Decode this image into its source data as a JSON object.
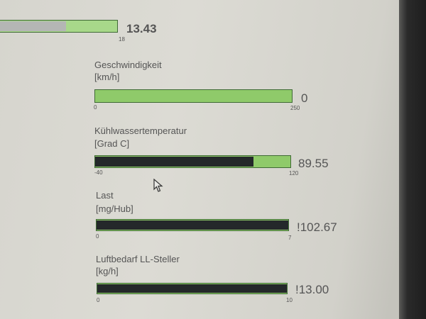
{
  "gauges": [
    {
      "label": "",
      "unit": "",
      "min": "",
      "max": "18",
      "value": "13.43",
      "fill_fraction": 0.55
    },
    {
      "label": "Geschwindigkeit",
      "unit": "[km/h]",
      "min": "0",
      "max": "250",
      "value": "0",
      "fill_fraction": 0
    },
    {
      "label": "Kühlwassertemperatur",
      "unit": "[Grad C]",
      "min": "-40",
      "max": "120",
      "value": "89.55",
      "fill_fraction": 0.81
    },
    {
      "label": "Last",
      "unit": "[mg/Hub]",
      "min": "0",
      "max": "7",
      "value": "!102.67",
      "fill_fraction": 1
    },
    {
      "label": "Luftbedarf LL-Steller",
      "unit": "[kg/h]",
      "min": "0",
      "max": "10",
      "value": "!13.00",
      "fill_fraction": 1
    }
  ],
  "colors": {
    "bar_empty": "#8fca6a",
    "bar_fill": "#24282a",
    "bar_border": "#3f6a35"
  },
  "cursor_icon": "mouse-pointer-icon"
}
